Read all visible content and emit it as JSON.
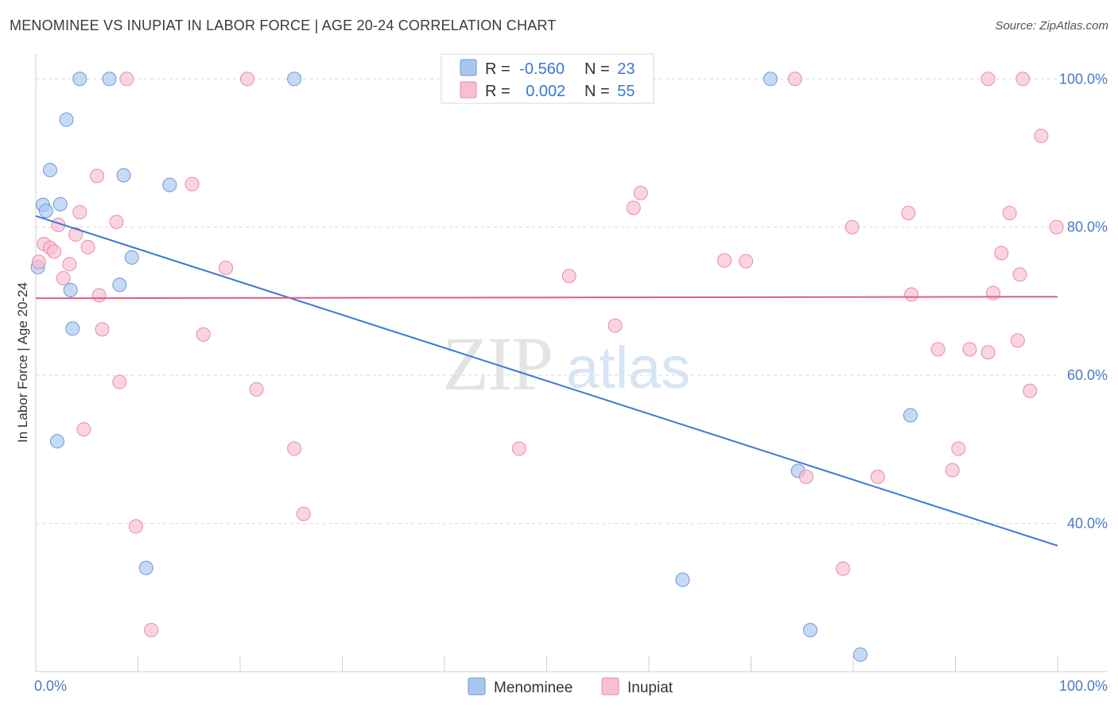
{
  "header": {
    "title": "MENOMINEE VS INUPIAT IN LABOR FORCE | AGE 20-24 CORRELATION CHART",
    "source": "Source: ZipAtlas.com"
  },
  "watermark": {
    "zip": "ZIP",
    "atlas": "atlas"
  },
  "stats": [
    {
      "r_label": "R = ",
      "r_value": "-0.560",
      "n_label": "N = ",
      "n_value": "23",
      "color": "#a9c6ef",
      "stroke": "#6b98d8"
    },
    {
      "r_label": "R = ",
      "r_value": "0.002",
      "n_label": "N = ",
      "n_value": "55",
      "color": "#f7bfd1",
      "stroke": "#e98aa8"
    }
  ],
  "chart_data": {
    "type": "scatter",
    "title": "MENOMINEE VS INUPIAT IN LABOR FORCE | AGE 20-24 CORRELATION CHART",
    "xlabel": "",
    "ylabel": "In Labor Force | Age 20-24",
    "xlim": [
      0,
      100
    ],
    "ylim": [
      20,
      104
    ],
    "x_tick_labels": [
      {
        "value": 0,
        "label": "0.0%"
      },
      {
        "value": 100,
        "label": "100.0%"
      }
    ],
    "y_tick_labels": [
      {
        "value": 40,
        "label": "40.0%"
      },
      {
        "value": 60,
        "label": "60.0%"
      },
      {
        "value": 80,
        "label": "80.0%"
      },
      {
        "value": 100,
        "label": "100.0%"
      }
    ],
    "grid": true,
    "legend_position": "bottom",
    "series": [
      {
        "name": "Menominee",
        "color": "#a9c6ef",
        "stroke": "#6b98d8",
        "line_color": "#3a78d4",
        "trend": {
          "x": [
            0,
            100
          ],
          "y": [
            81.5,
            37.0
          ]
        },
        "points": [
          [
            4.3,
            100
          ],
          [
            7.2,
            100
          ],
          [
            25.3,
            100
          ],
          [
            71.9,
            100
          ],
          [
            3.0,
            94.5
          ],
          [
            1.4,
            87.7
          ],
          [
            8.6,
            87.0
          ],
          [
            13.1,
            85.7
          ],
          [
            0.7,
            83.0
          ],
          [
            1.0,
            82.2
          ],
          [
            2.4,
            83.1
          ],
          [
            9.4,
            75.9
          ],
          [
            0.2,
            74.6
          ],
          [
            3.4,
            71.5
          ],
          [
            8.2,
            72.2
          ],
          [
            3.6,
            66.3
          ],
          [
            85.6,
            54.6
          ],
          [
            2.1,
            51.1
          ],
          [
            74.6,
            47.1
          ],
          [
            10.8,
            34.0
          ],
          [
            63.3,
            32.4
          ],
          [
            75.8,
            25.6
          ],
          [
            80.7,
            22.3
          ]
        ]
      },
      {
        "name": "Inupiat",
        "color": "#f7bfd1",
        "stroke": "#e98aa8",
        "line_color": "#e05c86",
        "trend": {
          "x": [
            0,
            100
          ],
          "y": [
            70.4,
            70.6
          ]
        },
        "points": [
          [
            8.9,
            100
          ],
          [
            20.7,
            100
          ],
          [
            74.3,
            100
          ],
          [
            93.2,
            100
          ],
          [
            96.6,
            100
          ],
          [
            98.4,
            92.3
          ],
          [
            6.0,
            86.9
          ],
          [
            15.3,
            85.8
          ],
          [
            58.5,
            82.6
          ],
          [
            59.2,
            84.6
          ],
          [
            4.3,
            82.0
          ],
          [
            7.9,
            80.7
          ],
          [
            2.2,
            80.3
          ],
          [
            85.4,
            81.9
          ],
          [
            95.3,
            81.9
          ],
          [
            79.9,
            80.0
          ],
          [
            99.9,
            80.0
          ],
          [
            0.8,
            77.7
          ],
          [
            1.4,
            77.2
          ],
          [
            1.8,
            76.7
          ],
          [
            3.9,
            79.0
          ],
          [
            5.1,
            77.3
          ],
          [
            0.3,
            75.3
          ],
          [
            3.3,
            75.0
          ],
          [
            18.6,
            74.5
          ],
          [
            67.4,
            75.5
          ],
          [
            69.5,
            75.4
          ],
          [
            94.5,
            76.5
          ],
          [
            2.7,
            73.1
          ],
          [
            52.2,
            73.4
          ],
          [
            96.3,
            73.6
          ],
          [
            6.2,
            70.8
          ],
          [
            85.7,
            70.9
          ],
          [
            93.7,
            71.1
          ],
          [
            6.5,
            66.2
          ],
          [
            16.4,
            65.5
          ],
          [
            56.7,
            66.7
          ],
          [
            88.3,
            63.5
          ],
          [
            91.4,
            63.5
          ],
          [
            93.2,
            63.1
          ],
          [
            96.1,
            64.7
          ],
          [
            8.2,
            59.1
          ],
          [
            21.6,
            58.1
          ],
          [
            97.3,
            57.9
          ],
          [
            4.7,
            52.7
          ],
          [
            25.3,
            50.1
          ],
          [
            47.3,
            50.1
          ],
          [
            90.3,
            50.1
          ],
          [
            75.4,
            46.3
          ],
          [
            82.4,
            46.3
          ],
          [
            89.7,
            47.2
          ],
          [
            26.2,
            41.3
          ],
          [
            9.8,
            39.6
          ],
          [
            79.0,
            33.9
          ],
          [
            11.3,
            25.6
          ]
        ]
      }
    ]
  },
  "legend": {
    "items": [
      {
        "label": "Menominee",
        "color": "#a9c6ef",
        "stroke": "#6b98d8"
      },
      {
        "label": "Inupiat",
        "color": "#f7bfd1",
        "stroke": "#e98aa8"
      }
    ]
  }
}
